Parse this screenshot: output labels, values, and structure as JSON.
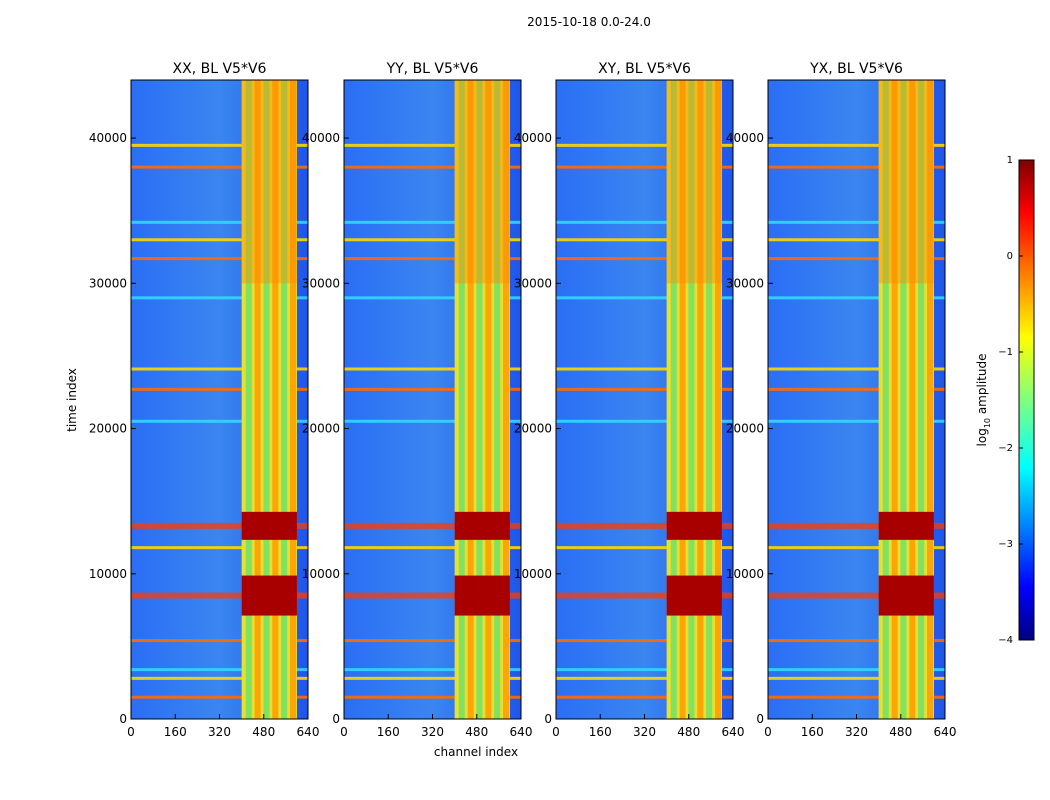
{
  "chart_data": {
    "type": "heatmap",
    "suptitle": "2015-10-18 0.0-24.0",
    "xlabel": "channel index",
    "ylabel": "time index",
    "xlim": [
      0,
      640
    ],
    "ylim": [
      0,
      44000
    ],
    "xticks": [
      "0",
      "160",
      "320",
      "480",
      "640"
    ],
    "yticks": [
      "0",
      "10000",
      "20000",
      "30000",
      "40000"
    ],
    "panels": [
      {
        "title": "XX, BL V5*V6"
      },
      {
        "title": "YY, BL V5*V6"
      },
      {
        "title": "XY, BL V5*V6"
      },
      {
        "title": "YX, BL V5*V6"
      }
    ],
    "colorbar": {
      "label": "log",
      "label_sub": "10",
      "label_suffix": " amplitude",
      "range": [
        -4,
        1
      ],
      "ticks": [
        "1",
        "0",
        "−1",
        "−2",
        "−3",
        "−4"
      ],
      "colormap": "jet"
    },
    "features": {
      "bright_channel_band": [
        400,
        600
      ],
      "strong_rfi_times": [
        8500,
        13300
      ],
      "horizontal_lines": [
        1500,
        2800,
        3400,
        5400,
        11800,
        20500,
        22700,
        24100,
        29000,
        31700,
        33000,
        34200,
        38000,
        39500
      ]
    }
  }
}
